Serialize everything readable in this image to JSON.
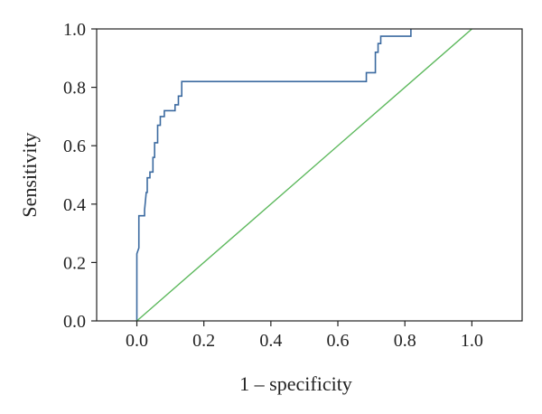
{
  "chart_data": {
    "type": "line",
    "title": "",
    "xlabel": "1 – specificity",
    "ylabel": "Sensitivity",
    "xlim": [
      -0.12,
      1.15
    ],
    "ylim": [
      0.0,
      1.0
    ],
    "x_ticks": [
      0.0,
      0.2,
      0.4,
      0.6,
      0.8,
      1.0
    ],
    "x_tick_labels": [
      "0.0",
      "0.2",
      "0.4",
      "0.6",
      "0.8",
      "1.0"
    ],
    "y_ticks": [
      0.0,
      0.2,
      0.4,
      0.6,
      0.8,
      1.0
    ],
    "y_tick_labels": [
      "0.0",
      "0.2",
      "0.4",
      "0.6",
      "0.8",
      "1.0"
    ],
    "grid": false,
    "legend": "none",
    "series": [
      {
        "color": "#3b6aa0",
        "points": [
          [
            0.0,
            0.0
          ],
          [
            0.0,
            0.23
          ],
          [
            0.006,
            0.25
          ],
          [
            0.006,
            0.36
          ],
          [
            0.023,
            0.36
          ],
          [
            0.023,
            0.38
          ],
          [
            0.028,
            0.44
          ],
          [
            0.031,
            0.44
          ],
          [
            0.031,
            0.49
          ],
          [
            0.039,
            0.49
          ],
          [
            0.039,
            0.51
          ],
          [
            0.048,
            0.51
          ],
          [
            0.048,
            0.56
          ],
          [
            0.053,
            0.56
          ],
          [
            0.053,
            0.61
          ],
          [
            0.062,
            0.61
          ],
          [
            0.062,
            0.67
          ],
          [
            0.07,
            0.67
          ],
          [
            0.07,
            0.7
          ],
          [
            0.082,
            0.7
          ],
          [
            0.082,
            0.72
          ],
          [
            0.114,
            0.72
          ],
          [
            0.114,
            0.74
          ],
          [
            0.124,
            0.74
          ],
          [
            0.124,
            0.77
          ],
          [
            0.134,
            0.77
          ],
          [
            0.134,
            0.82
          ],
          [
            0.685,
            0.82
          ],
          [
            0.685,
            0.85
          ],
          [
            0.712,
            0.85
          ],
          [
            0.712,
            0.92
          ],
          [
            0.72,
            0.92
          ],
          [
            0.72,
            0.95
          ],
          [
            0.728,
            0.95
          ],
          [
            0.728,
            0.975
          ],
          [
            0.818,
            0.975
          ],
          [
            0.818,
            1.0
          ]
        ]
      },
      {
        "color": "#5cb85c",
        "points": [
          [
            0.0,
            0.0
          ],
          [
            1.0,
            1.0
          ]
        ]
      }
    ]
  }
}
